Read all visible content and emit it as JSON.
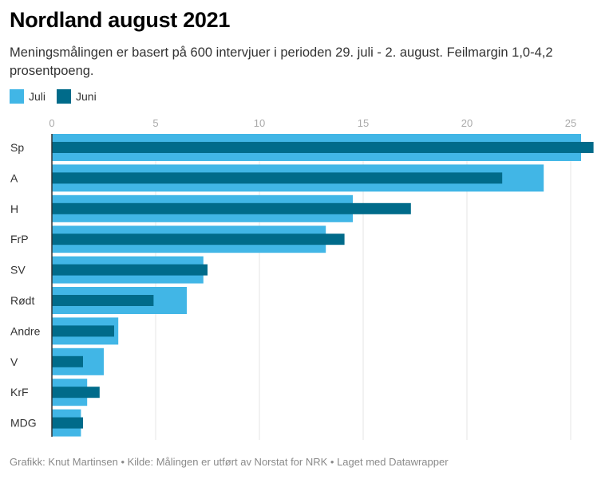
{
  "header": {
    "title": "Nordland august 2021",
    "subtitle": "Meningsmålingen er basert på 600 intervjuer i perioden 29. juli - 2. august. Feilmargin 1,0-4,2 prosentpoeng."
  },
  "footer": {
    "text": "Grafikk: Knut Martinsen • Kilde: Målingen er utført av Norstat for NRK • Laget med Datawrapper"
  },
  "chart_data": {
    "type": "bar",
    "orientation": "horizontal",
    "title": "Nordland august 2021",
    "xlabel": "",
    "ylabel": "",
    "xlim": [
      0,
      26.2
    ],
    "ticks": [
      0,
      5,
      10,
      15,
      20,
      25
    ],
    "tick_labels": [
      "0",
      "5",
      "10",
      "15",
      "20",
      "25"
    ],
    "grid": true,
    "legend_position": "top-left",
    "categories": [
      "Sp",
      "A",
      "H",
      "FrP",
      "SV",
      "Rødt",
      "Andre",
      "V",
      "KrF",
      "MDG"
    ],
    "series": [
      {
        "name": "Juli",
        "color": "#41b6e6",
        "values": [
          25.5,
          23.7,
          14.5,
          13.2,
          7.3,
          6.5,
          3.2,
          2.5,
          1.7,
          1.4
        ]
      },
      {
        "name": "Juni",
        "color": "#006b8a",
        "values": [
          26.1,
          21.7,
          17.3,
          14.1,
          7.5,
          4.9,
          3.0,
          1.5,
          2.3,
          1.5
        ]
      }
    ]
  }
}
